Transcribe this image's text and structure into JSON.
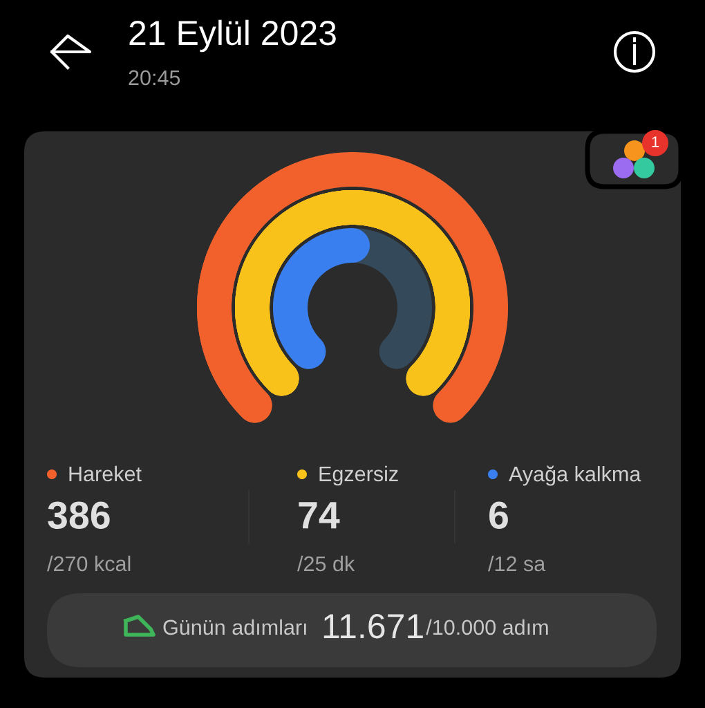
{
  "chart_data": {
    "type": "other",
    "title": "21 Eylül 2023",
    "subtitle": "20:45",
    "categories": [
      "Hareket",
      "Egzersiz",
      "Ayağa kalkma"
    ],
    "colors": [
      "#f2602b",
      "#f8c21a",
      "#3a7ff0"
    ],
    "series": [
      {
        "values": [
          386,
          74,
          6
        ],
        "value_labels": [
          "386",
          "74",
          "6"
        ]
      },
      {
        "values": [
          270,
          25,
          12
        ],
        "value_labels": [
          "/270 kcal",
          "/25 dk",
          "/12 sa"
        ]
      }
    ],
    "annotations": [
      "Günün adımları",
      "11.671",
      "/10.000 adım",
      "1"
    ]
  }
}
